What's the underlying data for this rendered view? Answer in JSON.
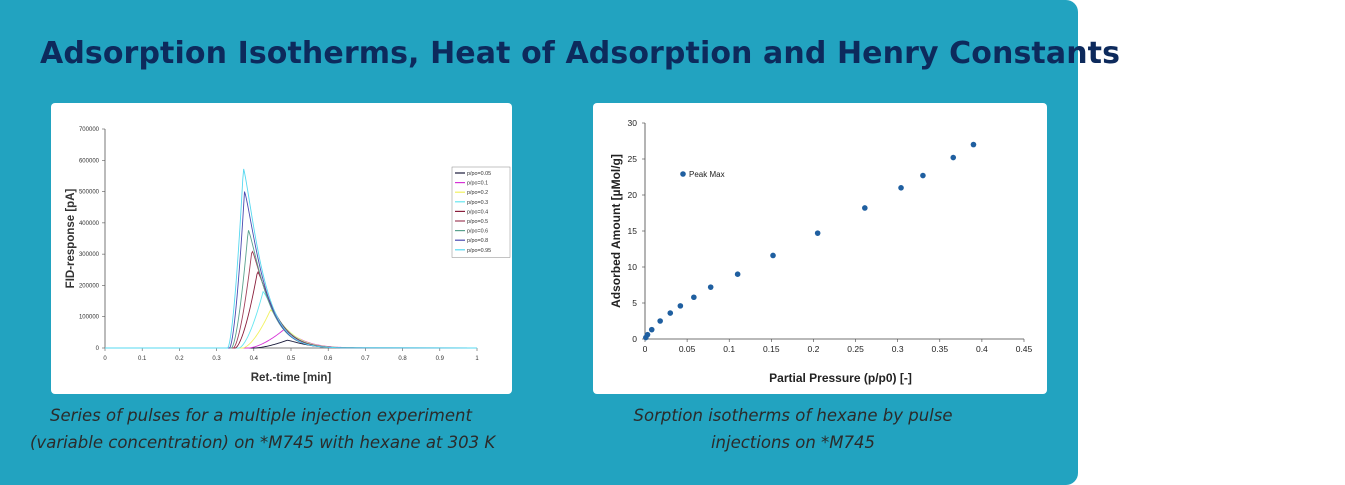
{
  "slide": {
    "title": "Adsorption Isotherms, Heat of Adsorption and Henry Constants",
    "caption_left": [
      "Series of pulses for a multiple injection experiment",
      "(variable concentration) on *M745 with hexane at 303 K"
    ],
    "caption_right": [
      "Sorption isotherms of hexane by pulse",
      "injections on *M745"
    ]
  },
  "chart_data": [
    {
      "type": "line",
      "title": "",
      "xlabel": "Ret.-time [min]",
      "ylabel": "FID-response [pA]",
      "xlim": [
        0,
        1
      ],
      "ylim": [
        0,
        700000
      ],
      "x_ticks": [
        "0",
        "0.1",
        "0.2",
        "0.3",
        "0.4",
        "0.5",
        "0.6",
        "0.7",
        "0.8",
        "0.9",
        "1"
      ],
      "y_ticks": [
        "0",
        "100000",
        "200000",
        "300000",
        "400000",
        "500000",
        "600000",
        "700000"
      ],
      "legend_position": "right",
      "grid": false,
      "series": [
        {
          "name": "p/po=0.05",
          "color": "#1a1a3a",
          "peak_x": 0.49,
          "peak_y": 25000,
          "start_x": 0.4
        },
        {
          "name": "p/po=0.1",
          "color": "#d633d6",
          "peak_x": 0.48,
          "peak_y": 58000,
          "start_x": 0.385
        },
        {
          "name": "p/po=0.2",
          "color": "#f2f260",
          "peak_x": 0.445,
          "peak_y": 122000,
          "start_x": 0.37
        },
        {
          "name": "p/po=0.3",
          "color": "#66e6f0",
          "peak_x": 0.425,
          "peak_y": 180000,
          "start_x": 0.36
        },
        {
          "name": "p/po=0.4",
          "color": "#8a1f3c",
          "peak_x": 0.41,
          "peak_y": 245000,
          "start_x": 0.35
        },
        {
          "name": "p/po=0.5",
          "color": "#a0405a",
          "peak_x": 0.395,
          "peak_y": 312000,
          "start_x": 0.345
        },
        {
          "name": "p/po=0.6",
          "color": "#5aa28e",
          "peak_x": 0.385,
          "peak_y": 378000,
          "start_x": 0.34
        },
        {
          "name": "p/po=0.8",
          "color": "#4a4ab0",
          "peak_x": 0.375,
          "peak_y": 500000,
          "start_x": 0.335
        },
        {
          "name": "p/po=0.95",
          "color": "#55d8f0",
          "peak_x": 0.372,
          "peak_y": 575000,
          "start_x": 0.33
        }
      ]
    },
    {
      "type": "scatter",
      "title": "",
      "xlabel": "Partial Pressure (p/p0) [-]",
      "ylabel": "Adsorbed Amount [µMol/g]",
      "xlim": [
        0,
        0.45
      ],
      "ylim": [
        0,
        30
      ],
      "x_ticks": [
        "0",
        "0.05",
        "0.1",
        "0.15",
        "0.2",
        "0.25",
        "0.3",
        "0.35",
        "0.4",
        "0.45"
      ],
      "y_ticks": [
        "0",
        "5",
        "10",
        "15",
        "20",
        "25",
        "30"
      ],
      "legend_position": "top-left",
      "grid": false,
      "series": [
        {
          "name": "Peak Max",
          "color": "#1f5fa0",
          "x": [
            0.001,
            0.003,
            0.008,
            0.018,
            0.03,
            0.042,
            0.058,
            0.078,
            0.11,
            0.152,
            0.205,
            0.261,
            0.304,
            0.33,
            0.366,
            0.39
          ],
          "y": [
            0.2,
            0.6,
            1.3,
            2.5,
            3.6,
            4.6,
            5.8,
            7.2,
            9.0,
            11.6,
            14.7,
            18.2,
            21.0,
            22.7,
            25.2,
            27.0
          ]
        }
      ]
    }
  ]
}
